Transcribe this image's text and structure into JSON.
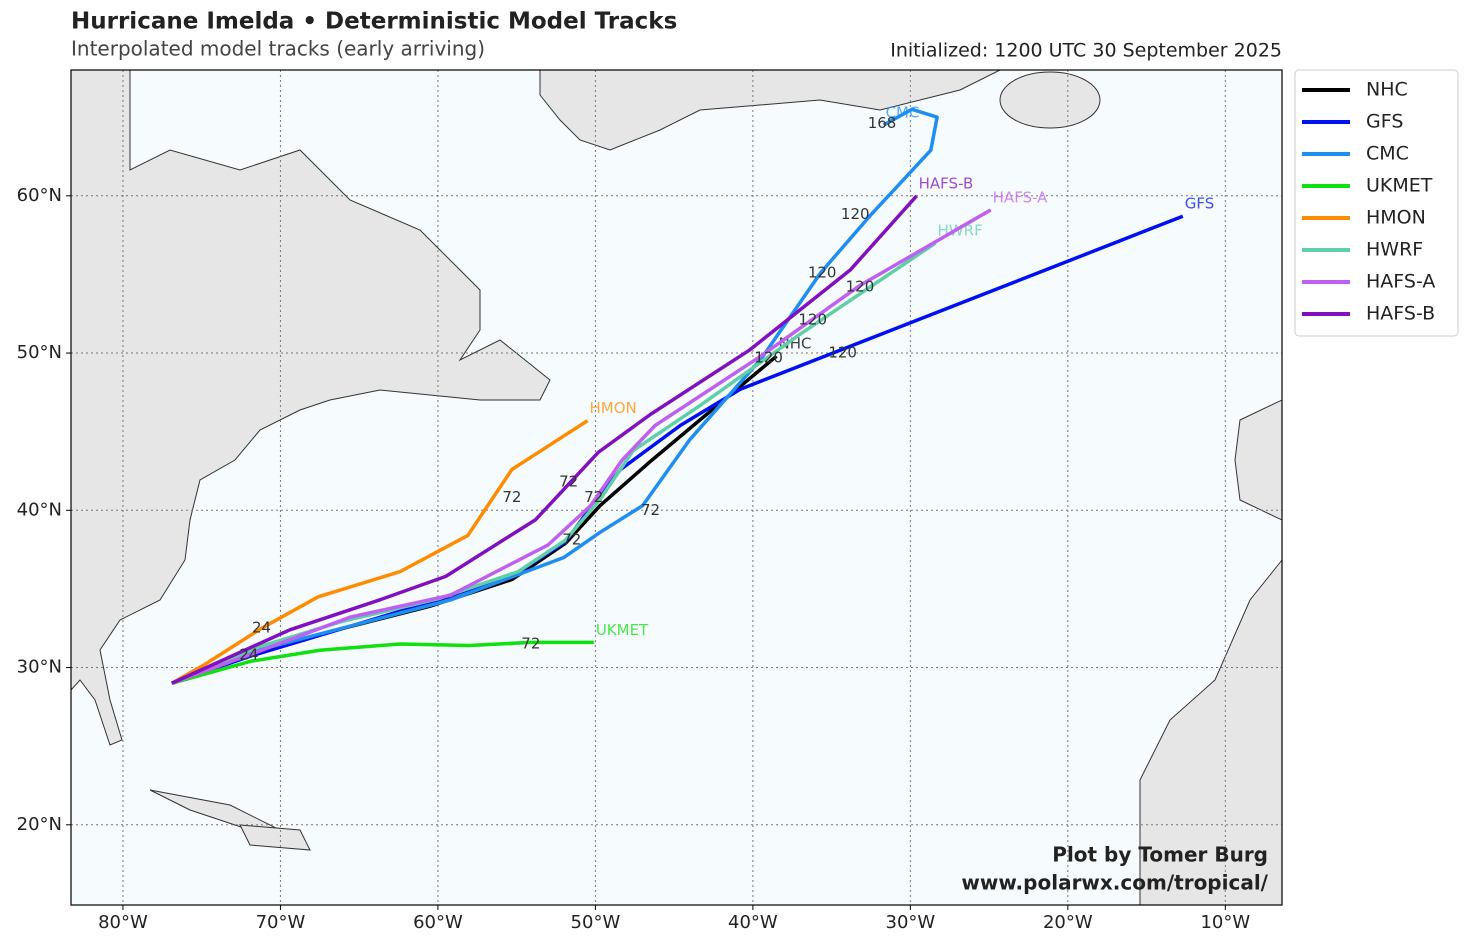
{
  "chart_data": {
    "type": "track-map",
    "title": "Hurricane Imelda • Deterministic Model Tracks",
    "subtitle": "Interpolated model tracks (early arriving)",
    "initialized": "Initialized: 1200 UTC 30 September 2025",
    "credit": [
      "Plot by Tomer Burg",
      "www.polarwx.com/tropical/"
    ],
    "xlim": [
      -83.3,
      -6.4
    ],
    "ylim": [
      14.9,
      68.0
    ],
    "xticks": [
      {
        "value": -80,
        "label": "80°W"
      },
      {
        "value": -70,
        "label": "70°W"
      },
      {
        "value": -60,
        "label": "60°W"
      },
      {
        "value": -50,
        "label": "50°W"
      },
      {
        "value": -40,
        "label": "40°W"
      },
      {
        "value": -30,
        "label": "30°W"
      },
      {
        "value": -20,
        "label": "20°W"
      },
      {
        "value": -10,
        "label": "10°W"
      }
    ],
    "yticks": [
      {
        "value": 20,
        "label": "20°N"
      },
      {
        "value": 30,
        "label": "30°N"
      },
      {
        "value": 40,
        "label": "40°N"
      },
      {
        "value": 50,
        "label": "50°N"
      },
      {
        "value": 60,
        "label": "60°N"
      }
    ],
    "grid": true,
    "legend": "outside-right",
    "series": [
      {
        "name": "NHC",
        "color": "#000000",
        "x": [
          -76.9,
          -72.6,
          -66.8,
          -60.5,
          -55.3,
          -51.9,
          -49.7,
          -46.4,
          -43.3,
          -38.5
        ],
        "values": [
          29.0,
          30.6,
          32.3,
          33.9,
          35.6,
          37.9,
          40.3,
          43.2,
          45.8,
          49.8
        ]
      },
      {
        "name": "GFS",
        "color": "#0010f0",
        "x": [
          -76.9,
          -72.0,
          -66.0,
          -60.0,
          -55.0,
          -51.9,
          -50.5,
          -48.4,
          -44.6,
          -40.8,
          -34.4,
          -12.7
        ],
        "values": [
          29.0,
          30.7,
          32.5,
          34.3,
          36.0,
          38.0,
          39.9,
          42.6,
          45.4,
          47.7,
          50.2,
          58.7
        ]
      },
      {
        "name": "CMC",
        "color": "#1e8ff0",
        "x": [
          -76.9,
          -72.6,
          -59.2,
          -52.0,
          -49.7,
          -47.0,
          -44.0,
          -39.5,
          -35.7,
          -32.5,
          -28.7,
          -28.3,
          -29.9,
          -31.7
        ],
        "values": [
          29.0,
          30.8,
          34.3,
          37.0,
          38.6,
          40.3,
          44.5,
          49.6,
          55.1,
          58.8,
          62.9,
          65.0,
          65.5,
          64.5
        ]
      },
      {
        "name": "UKMET",
        "color": "#10e010",
        "x": [
          -76.9,
          -71.9,
          -67.5,
          -62.4,
          -58.0,
          -54.1,
          -50.1
        ],
        "values": [
          29.0,
          30.4,
          31.1,
          31.5,
          31.4,
          31.6,
          31.6
        ]
      },
      {
        "name": "HMON",
        "color": "#ff8c00",
        "x": [
          -76.9,
          -74.8,
          -71.2,
          -67.6,
          -62.4,
          -58.1,
          -55.3,
          -50.5
        ],
        "values": [
          29.0,
          30.2,
          32.5,
          34.5,
          36.1,
          38.4,
          42.6,
          45.7
        ]
      },
      {
        "name": "HWRF",
        "color": "#5fcfa8",
        "x": [
          -76.9,
          -71.4,
          -66.2,
          -59.9,
          -54.9,
          -51.9,
          -49.7,
          -47.6,
          -43.3,
          -37.0,
          -28.4
        ],
        "values": [
          29.0,
          31.3,
          32.9,
          34.4,
          36.1,
          38.1,
          40.7,
          43.8,
          46.7,
          51.2,
          57.0
        ]
      },
      {
        "name": "HAFS-A",
        "color": "#c060f0",
        "x": [
          -76.9,
          -72.0,
          -65.6,
          -59.2,
          -53.0,
          -50.3,
          -48.3,
          -46.2,
          -39.5,
          -33.2,
          -24.9
        ],
        "values": [
          29.0,
          30.8,
          33.2,
          34.6,
          37.8,
          40.3,
          43.2,
          45.4,
          49.8,
          54.3,
          59.1
        ]
      },
      {
        "name": "HAFS-B",
        "color": "#8010c0",
        "x": [
          -76.9,
          -69.4,
          -63.7,
          -59.5,
          -53.8,
          -49.8,
          -46.5,
          -40.2,
          -33.8,
          -29.6
        ],
        "values": [
          29.0,
          32.4,
          34.3,
          35.8,
          39.4,
          43.7,
          46.1,
          50.2,
          55.3,
          60.0
        ]
      }
    ],
    "annotations": [
      {
        "text": "24",
        "x": -71.2,
        "y": 32.5
      },
      {
        "text": "24",
        "x": -72.0,
        "y": 30.8
      },
      {
        "text": "72",
        "x": -55.3,
        "y": 40.8
      },
      {
        "text": "72",
        "x": -51.7,
        "y": 41.8
      },
      {
        "text": "72",
        "x": -50.1,
        "y": 40.8
      },
      {
        "text": "72",
        "x": -46.5,
        "y": 40.0
      },
      {
        "text": "72",
        "x": -51.5,
        "y": 38.1
      },
      {
        "text": "72",
        "x": -54.1,
        "y": 31.5
      },
      {
        "text": "120",
        "x": -39.0,
        "y": 49.7
      },
      {
        "text": "120",
        "x": -34.3,
        "y": 50.0
      },
      {
        "text": "120",
        "x": -36.2,
        "y": 52.1
      },
      {
        "text": "120",
        "x": -33.2,
        "y": 54.2
      },
      {
        "text": "120",
        "x": -35.6,
        "y": 55.1
      },
      {
        "text": "120",
        "x": -33.5,
        "y": 58.8
      },
      {
        "text": "168",
        "x": -31.8,
        "y": 64.6
      }
    ]
  }
}
